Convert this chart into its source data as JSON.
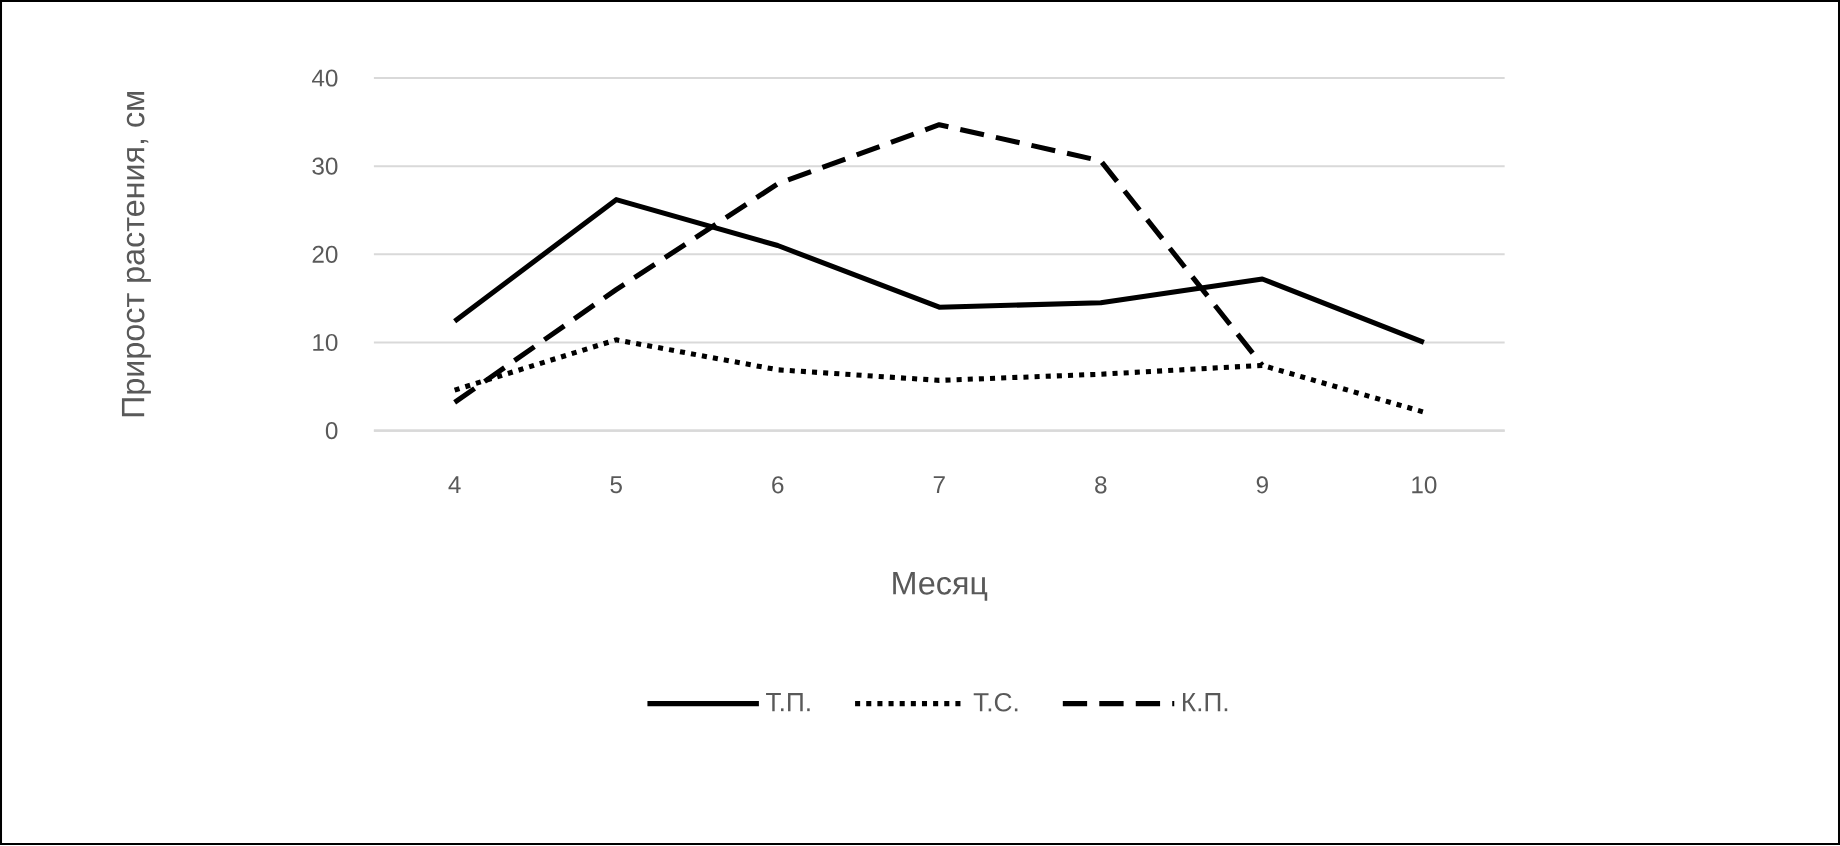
{
  "chart_data": {
    "type": "line",
    "xlabel": "Месяц",
    "ylabel": "Прирост растения, см",
    "categories": [
      "4",
      "5",
      "6",
      "7",
      "8",
      "9",
      "10"
    ],
    "series": [
      {
        "name": "Т.П.",
        "color": "#000000",
        "line_style": "solid",
        "values": [
          12.4,
          26.2,
          21,
          14,
          14.5,
          17.2,
          10
        ]
      },
      {
        "name": "Т.С.",
        "color": "#000000",
        "line_style": "dotted",
        "values": [
          4.6,
          10.3,
          6.9,
          5.7,
          6.4,
          7.4,
          2.1
        ]
      },
      {
        "name": "К.П.",
        "color": "#000000",
        "line_style": "dashed",
        "values": [
          3.2,
          16,
          28,
          34.7,
          30.6,
          7.4,
          null
        ]
      }
    ],
    "ylim": [
      0,
      40
    ],
    "yticks": [
      0,
      10,
      20,
      30,
      40
    ],
    "grid": "y",
    "legend": "bottom",
    "marker": "none"
  }
}
